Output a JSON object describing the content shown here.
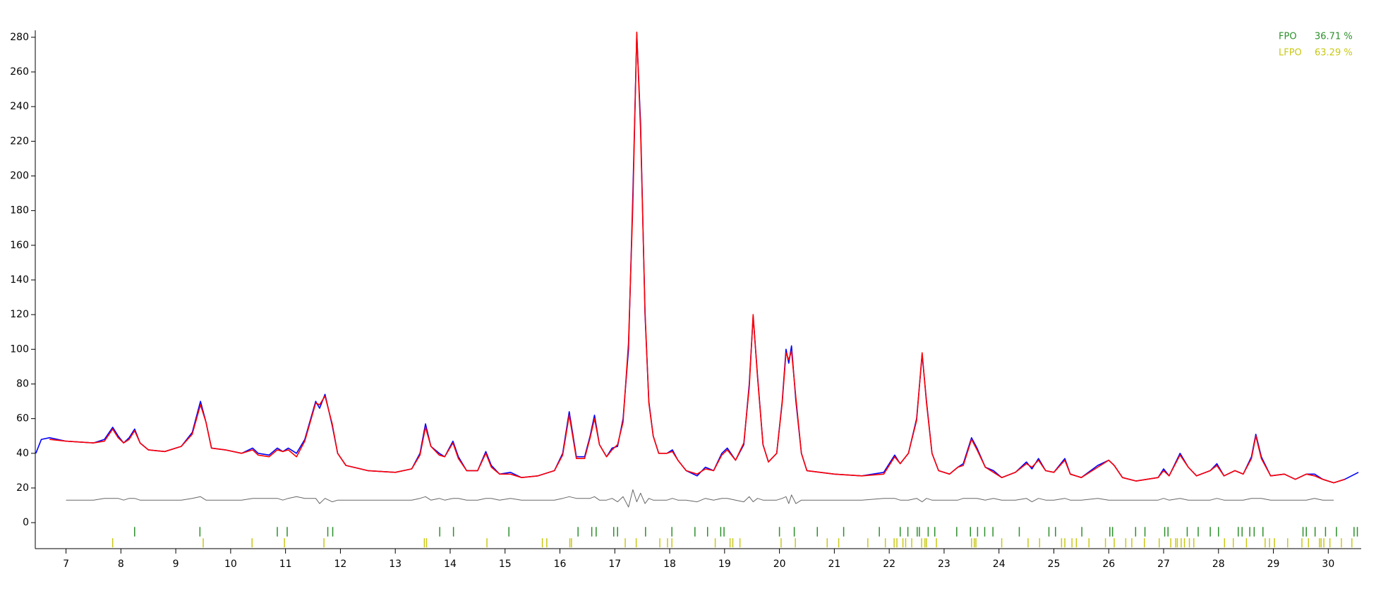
{
  "chart_data": {
    "type": "line",
    "x": [
      6.45,
      6.55,
      6.7,
      7.0,
      7.5,
      7.7,
      7.85,
      7.95,
      8.05,
      8.15,
      8.25,
      8.35,
      8.5,
      8.8,
      9.1,
      9.3,
      9.45,
      9.55,
      9.65,
      9.9,
      10.2,
      10.4,
      10.5,
      10.7,
      10.85,
      10.95,
      11.05,
      11.2,
      11.35,
      11.55,
      11.62,
      11.72,
      11.85,
      11.95,
      12.1,
      12.5,
      13.0,
      13.3,
      13.45,
      13.55,
      13.65,
      13.8,
      13.9,
      14.05,
      14.15,
      14.3,
      14.5,
      14.65,
      14.75,
      14.9,
      15.1,
      15.3,
      15.6,
      15.9,
      16.05,
      16.17,
      16.3,
      16.45,
      16.55,
      16.63,
      16.72,
      16.85,
      16.95,
      17.05,
      17.15,
      17.25,
      17.33,
      17.4,
      17.47,
      17.55,
      17.62,
      17.7,
      17.8,
      17.95,
      18.05,
      18.15,
      18.3,
      18.5,
      18.65,
      18.8,
      18.95,
      19.05,
      19.2,
      19.35,
      19.45,
      19.52,
      19.6,
      19.7,
      19.8,
      19.95,
      20.05,
      20.12,
      20.17,
      20.22,
      20.3,
      20.4,
      20.5,
      21.0,
      21.5,
      21.9,
      22.1,
      22.2,
      22.35,
      22.5,
      22.6,
      22.68,
      22.78,
      22.9,
      23.1,
      23.25,
      23.35,
      23.5,
      23.6,
      23.75,
      23.9,
      24.05,
      24.3,
      24.5,
      24.6,
      24.72,
      24.85,
      25.0,
      25.2,
      25.3,
      25.5,
      25.8,
      26.0,
      26.1,
      26.25,
      26.5,
      26.9,
      27.0,
      27.1,
      27.3,
      27.45,
      27.6,
      27.85,
      27.97,
      28.1,
      28.3,
      28.45,
      28.6,
      28.68,
      28.78,
      28.95,
      29.2,
      29.4,
      29.6,
      29.75,
      29.9,
      30.1,
      30.3,
      30.55
    ],
    "series": [
      {
        "color": "#0000ff",
        "values": [
          40,
          48,
          49,
          47,
          46,
          48,
          55,
          50,
          46,
          49,
          54,
          46,
          42,
          41,
          44,
          52,
          70,
          58,
          43,
          42,
          40,
          43,
          40,
          39,
          43,
          41,
          43,
          40,
          48,
          70,
          66,
          74,
          56,
          40,
          33,
          30,
          29,
          31,
          40,
          57,
          44,
          40,
          38,
          47,
          38,
          30,
          30,
          41,
          33,
          28,
          29,
          26,
          27,
          30,
          40,
          64,
          38,
          38,
          50,
          62,
          45,
          38,
          43,
          44,
          60,
          100,
          190,
          282,
          230,
          120,
          70,
          50,
          40,
          40,
          42,
          36,
          30,
          27,
          32,
          30,
          40,
          43,
          36,
          45,
          80,
          119,
          85,
          45,
          35,
          40,
          70,
          100,
          92,
          102,
          70,
          40,
          30,
          28,
          27,
          29,
          39,
          34,
          40,
          60,
          97,
          70,
          40,
          30,
          28,
          32,
          34,
          49,
          43,
          32,
          30,
          26,
          29,
          35,
          31,
          37,
          30,
          29,
          37,
          28,
          26,
          33,
          36,
          33,
          26,
          24,
          26,
          31,
          27,
          40,
          32,
          27,
          30,
          34,
          27,
          30,
          28,
          38,
          51,
          38,
          27,
          28,
          25,
          28,
          28,
          25,
          23,
          25,
          29
        ]
      },
      {
        "color": "#ff0000",
        "values": [
          null,
          null,
          48,
          47,
          46,
          47,
          54,
          49,
          46,
          48,
          53,
          46,
          42,
          41,
          44,
          51,
          68,
          58,
          43,
          42,
          40,
          42,
          39,
          38,
          42,
          41,
          42,
          38,
          47,
          69,
          68,
          73,
          57,
          40,
          33,
          30,
          29,
          31,
          39,
          55,
          44,
          39,
          38,
          46,
          37,
          30,
          30,
          40,
          32,
          28,
          28,
          26,
          27,
          30,
          39,
          62,
          37,
          37,
          49,
          60,
          45,
          38,
          42,
          45,
          58,
          104,
          184,
          283,
          226,
          122,
          69,
          50,
          40,
          40,
          41,
          36,
          30,
          28,
          31,
          30,
          39,
          42,
          36,
          46,
          78,
          120,
          84,
          45,
          35,
          40,
          69,
          98,
          94,
          99,
          72,
          40,
          30,
          28,
          27,
          28,
          38,
          34,
          40,
          59,
          98,
          69,
          40,
          30,
          28,
          32,
          33,
          48,
          42,
          32,
          29,
          26,
          29,
          34,
          32,
          36,
          30,
          29,
          36,
          28,
          26,
          32,
          36,
          33,
          26,
          24,
          26,
          30,
          27,
          39,
          32,
          27,
          30,
          33,
          27,
          30,
          28,
          37,
          50,
          37,
          27,
          28,
          25,
          28,
          27,
          25,
          23,
          25,
          null
        ]
      },
      {
        "color": "#666666",
        "values": [
          null,
          null,
          null,
          13,
          13,
          14,
          14,
          14,
          13,
          14,
          14,
          13,
          13,
          13,
          13,
          14,
          15,
          13,
          13,
          13,
          13,
          14,
          14,
          14,
          14,
          13,
          14,
          15,
          14,
          14,
          11,
          14,
          12,
          13,
          13,
          13,
          13,
          13,
          14,
          15,
          13,
          14,
          13,
          14,
          14,
          13,
          13,
          14,
          14,
          13,
          14,
          13,
          13,
          13,
          14,
          15,
          14,
          14,
          14,
          15,
          13,
          13,
          14,
          12,
          15,
          9,
          19,
          12,
          17,
          11,
          14,
          13,
          13,
          13,
          14,
          13,
          13,
          12,
          14,
          13,
          14,
          14,
          13,
          12,
          15,
          12,
          14,
          13,
          13,
          13,
          14,
          15,
          11,
          16,
          11,
          13,
          13,
          13,
          13,
          14,
          14,
          13,
          13,
          14,
          12,
          14,
          13,
          13,
          13,
          13,
          14,
          14,
          14,
          13,
          14,
          13,
          13,
          14,
          12,
          14,
          13,
          13,
          14,
          13,
          13,
          14,
          13,
          13,
          13,
          13,
          13,
          14,
          13,
          14,
          13,
          13,
          13,
          14,
          13,
          13,
          13,
          14,
          14,
          14,
          13,
          13,
          13,
          13,
          14,
          13,
          13,
          null,
          null
        ]
      }
    ],
    "phases": [
      {
        "name": "FPO",
        "fraction": "36.71 %",
        "color": "#2b8f2b",
        "positions": [
          8.25,
          9.44,
          10.85,
          11.03,
          11.77,
          11.86,
          13.81,
          14.06,
          15.07,
          16.33,
          16.58,
          16.66,
          16.98,
          17.05,
          17.56,
          18.04,
          18.46,
          18.69,
          18.93,
          18.99,
          20.0,
          20.27,
          20.69,
          21.17,
          21.82,
          22.2,
          22.34,
          22.51,
          22.55,
          22.71,
          22.83,
          23.23,
          23.48,
          23.61,
          23.74,
          23.89,
          24.37,
          24.91,
          25.03,
          25.51,
          26.02,
          26.07,
          26.49,
          26.66,
          27.02,
          27.08,
          27.43,
          27.63,
          27.85,
          28.0,
          28.36,
          28.43,
          28.57,
          28.65,
          28.81,
          29.54,
          29.6,
          29.76,
          29.95,
          30.15,
          30.47,
          30.53
        ]
      },
      {
        "name": "LFPO",
        "fraction": "63.29 %",
        "color": "#c8c814",
        "positions": [
          7.85,
          9.5,
          10.39,
          10.98,
          11.7,
          13.53,
          13.57,
          14.67,
          15.68,
          15.76,
          16.18,
          16.21,
          17.19,
          17.39,
          17.82,
          17.96,
          18.04,
          18.83,
          19.1,
          19.15,
          19.28,
          20.03,
          20.29,
          20.87,
          21.08,
          21.61,
          21.93,
          22.09,
          22.14,
          22.25,
          22.3,
          22.41,
          22.59,
          22.65,
          22.68,
          22.86,
          23.5,
          23.55,
          23.58,
          24.05,
          24.53,
          24.74,
          25.14,
          25.2,
          25.33,
          25.41,
          25.64,
          25.94,
          26.1,
          26.31,
          26.42,
          26.65,
          26.92,
          27.13,
          27.22,
          27.25,
          27.32,
          27.38,
          27.47,
          27.55,
          28.11,
          28.27,
          28.51,
          28.85,
          28.93,
          29.02,
          29.26,
          29.52,
          29.64,
          29.84,
          29.87,
          29.92,
          30.03,
          30.24,
          30.43
        ]
      }
    ],
    "xlim": [
      6.44,
      30.6
    ],
    "ylim": [
      -15,
      284
    ],
    "xticks": [
      7,
      8,
      9,
      10,
      11,
      12,
      13,
      14,
      15,
      16,
      17,
      18,
      19,
      20,
      21,
      22,
      23,
      24,
      25,
      26,
      27,
      28,
      29,
      30
    ],
    "yticks": [
      0,
      20,
      40,
      60,
      80,
      100,
      120,
      140,
      160,
      180,
      200,
      220,
      240,
      260,
      280
    ]
  }
}
